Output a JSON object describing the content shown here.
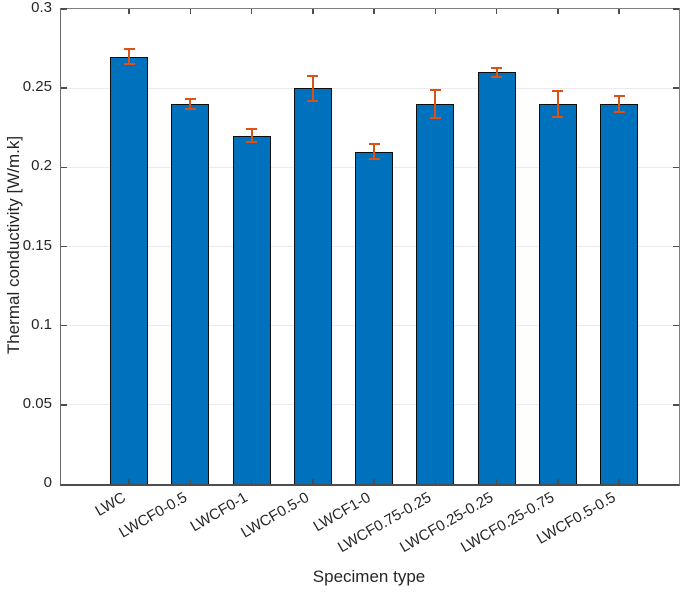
{
  "figure": {
    "background": "#ffffff"
  },
  "chart_data": {
    "type": "bar",
    "title": "",
    "xlabel": "Specimen type",
    "ylabel": "Thermal conductivity [W/m.k]",
    "categories": [
      "LWC",
      "LWCF0-0.5",
      "LWCF0-1",
      "LWCF0.5-0",
      "LWCF1-0",
      "LWCF0.75-0.25",
      "LWCF0.25-0.25",
      "LWCF0.25-0.75",
      "LWCF0.5-0.5"
    ],
    "values": [
      0.27,
      0.24,
      0.22,
      0.25,
      0.21,
      0.24,
      0.26,
      0.24,
      0.24
    ],
    "errors": [
      0.005,
      0.003,
      0.004,
      0.008,
      0.005,
      0.009,
      0.003,
      0.008,
      0.005
    ],
    "ylim": [
      0,
      0.3
    ],
    "yticks": [
      0,
      0.05,
      0.1,
      0.15,
      0.2,
      0.25,
      0.3
    ],
    "ytick_labels": [
      "0",
      "0.05",
      "0.1",
      "0.15",
      "0.2",
      "0.25",
      "0.3"
    ],
    "grid": "horizontal-only",
    "legend": "none",
    "xtick_angle_deg": 30,
    "bar_color": "#0072BD",
    "bar_edge_color": "#0d0d0d",
    "error_bar_color": "#D95319"
  }
}
